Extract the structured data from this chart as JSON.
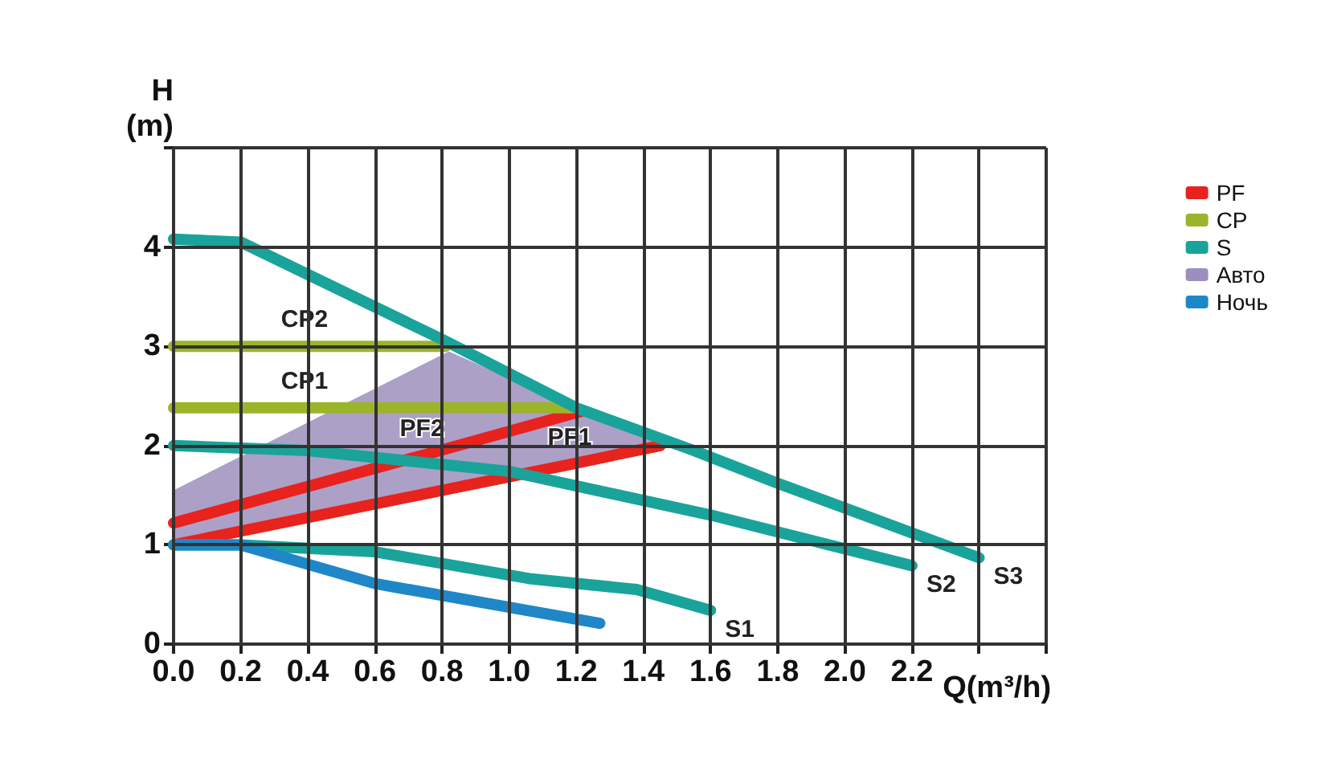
{
  "chart_data": {
    "type": "line",
    "xlabel": "Q(m³/h)",
    "ylabel": "H\n(m)",
    "xlim": [
      0,
      2.6
    ],
    "ylim": [
      0,
      5
    ],
    "xticks": [
      {
        "value": 0,
        "label": "0.0"
      },
      {
        "value": 0.2,
        "label": "0.2"
      },
      {
        "value": 0.4,
        "label": "0.4"
      },
      {
        "value": 0.6,
        "label": "0.6"
      },
      {
        "value": 0.8,
        "label": "0.8"
      },
      {
        "value": 1,
        "label": "1.0"
      },
      {
        "value": 1.2,
        "label": "1.2"
      },
      {
        "value": 1.4,
        "label": "1.4"
      },
      {
        "value": 1.6,
        "label": "1.6"
      },
      {
        "value": 1.8,
        "label": "1.8"
      },
      {
        "value": 2,
        "label": "2.0"
      },
      {
        "value": 2.2,
        "label": "2.2"
      },
      {
        "value": 2.4,
        "label": null
      },
      {
        "value": 2.6,
        "label": null
      }
    ],
    "yticks": [
      0,
      1,
      2,
      3,
      4,
      {
        "value": 5,
        "label": null
      }
    ],
    "grid": true,
    "legend": "right",
    "series": [
      {
        "name": "PF",
        "color": "#e8221c",
        "x": [
          0,
          0.74,
          1.22,
          null,
          0,
          1.18,
          1.45
        ],
        "values": [
          1.22,
          1.9,
          2.35,
          null,
          1.0,
          1.81,
          2.0
        ],
        "value_labels": [
          null,
          "PF2",
          null,
          null,
          null,
          "PF1",
          null
        ]
      },
      {
        "name": "CP",
        "color": "#9ab52a",
        "x": [
          0,
          0.39,
          0.81,
          null,
          0,
          0.39,
          1.19
        ],
        "values": [
          3.0,
          3.0,
          3.0,
          null,
          2.38,
          2.38,
          2.38
        ],
        "value_labels": [
          null,
          "CP2",
          null,
          null,
          null,
          "CP1",
          null
        ]
      },
      {
        "name": "S",
        "color": "#1aa39a",
        "x": [
          0,
          0.2,
          0.8,
          1.2,
          1.55,
          1.8,
          2.4,
          null,
          0,
          0.4,
          1.0,
          1.6,
          2.2,
          null,
          0,
          0.2,
          0.6,
          1.06,
          1.38,
          1.6
        ],
        "values": [
          4.08,
          4.05,
          3.07,
          2.38,
          1.95,
          1.62,
          0.87,
          null,
          2.0,
          1.95,
          1.74,
          1.3,
          0.79,
          null,
          1.0,
          1.0,
          0.93,
          0.66,
          0.55,
          0.34
        ],
        "value_labels": [
          null,
          null,
          null,
          null,
          null,
          null,
          "S3",
          null,
          null,
          null,
          null,
          null,
          "S2",
          null,
          null,
          null,
          null,
          null,
          null,
          "S1"
        ]
      },
      {
        "name": "Авто",
        "type": "area",
        "color": "#9d8fbd",
        "x": [
          0,
          0.82,
          1.2,
          1.5,
          1.45,
          0
        ],
        "values": [
          1.55,
          2.95,
          2.38,
          2.0,
          2.0,
          1.0
        ]
      },
      {
        "name": "Ночь",
        "color": "#1f87c8",
        "x": [
          0,
          0.2,
          0.6,
          1.27
        ],
        "values": [
          1.0,
          1.0,
          0.61,
          0.21
        ]
      }
    ]
  }
}
